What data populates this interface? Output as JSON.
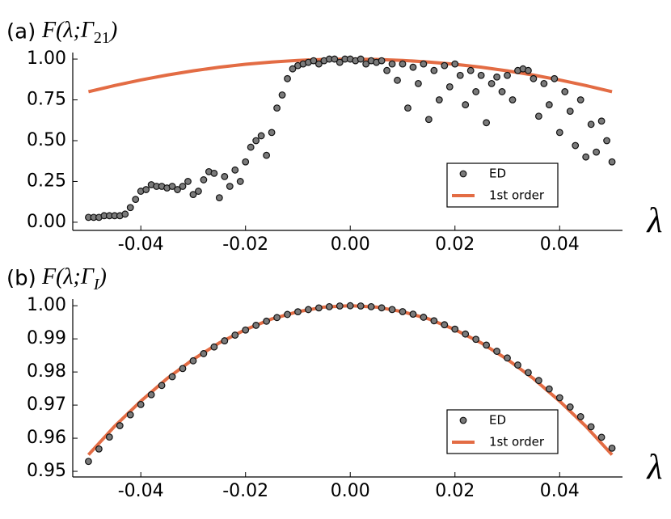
{
  "chart_data": [
    {
      "type": "scatter",
      "panel": "(a)",
      "title": [
        "F(λ;Γ",
        "21",
        ")"
      ],
      "x_label": "λ",
      "xlim": [
        -0.053,
        0.052
      ],
      "ylim": [
        -0.05,
        1.04
      ],
      "xticks": [
        {
          "value": -0.04,
          "label": "-0.04"
        },
        {
          "value": -0.02,
          "label": "-0.02"
        },
        {
          "value": 0,
          "label": "0.00"
        },
        {
          "value": 0.02,
          "label": "0.02"
        },
        {
          "value": 0.04,
          "label": "0.04"
        }
      ],
      "yticks": [
        {
          "value": 0,
          "label": "0.00"
        },
        {
          "value": 0.25,
          "label": "0.25"
        },
        {
          "value": 0.5,
          "label": "0.50"
        },
        {
          "value": 0.75,
          "label": "0.75"
        },
        {
          "value": 1,
          "label": "1.00"
        }
      ],
      "legend": "lower right",
      "series": [
        {
          "name": "ED",
          "type": "scatter",
          "color": "#7a7a7a",
          "x": [
            -0.05,
            -0.049,
            -0.048,
            -0.047,
            -0.046,
            -0.045,
            -0.044,
            -0.043,
            -0.042,
            -0.041,
            -0.04,
            -0.039,
            -0.038,
            -0.037,
            -0.036,
            -0.035,
            -0.034,
            -0.033,
            -0.032,
            -0.031,
            -0.03,
            -0.029,
            -0.028,
            -0.027,
            -0.026,
            -0.025,
            -0.024,
            -0.023,
            -0.022,
            -0.021,
            -0.02,
            -0.019,
            -0.018,
            -0.017,
            -0.016,
            -0.015,
            -0.014,
            -0.013,
            -0.012,
            -0.011,
            -0.01,
            -0.009,
            -0.008,
            -0.007,
            -0.006,
            -0.005,
            -0.004,
            -0.003,
            -0.002,
            -0.001,
            0,
            0.001,
            0.002,
            0.003,
            0.004,
            0.005,
            0.006,
            0.007,
            0.008,
            0.009,
            0.01,
            0.011,
            0.012,
            0.013,
            0.014,
            0.015,
            0.016,
            0.017,
            0.018,
            0.019,
            0.02,
            0.021,
            0.022,
            0.023,
            0.024,
            0.025,
            0.026,
            0.027,
            0.028,
            0.029,
            0.03,
            0.031,
            0.032,
            0.033,
            0.034,
            0.035,
            0.036,
            0.037,
            0.038,
            0.039,
            0.04,
            0.041,
            0.042,
            0.043,
            0.044,
            0.045,
            0.046,
            0.047,
            0.048,
            0.049,
            0.05
          ],
          "values": [
            0.03,
            0.03,
            0.03,
            0.04,
            0.04,
            0.04,
            0.04,
            0.05,
            0.09,
            0.14,
            0.19,
            0.2,
            0.23,
            0.22,
            0.22,
            0.21,
            0.22,
            0.2,
            0.22,
            0.25,
            0.17,
            0.19,
            0.26,
            0.31,
            0.3,
            0.15,
            0.28,
            0.22,
            0.32,
            0.25,
            0.37,
            0.46,
            0.5,
            0.53,
            0.41,
            0.55,
            0.7,
            0.78,
            0.88,
            0.94,
            0.96,
            0.97,
            0.98,
            0.99,
            0.97,
            0.99,
            1.0,
            1.0,
            0.98,
            1.0,
            1.0,
            0.99,
            1.0,
            0.97,
            0.99,
            0.98,
            0.99,
            0.93,
            0.97,
            0.87,
            0.97,
            0.7,
            0.95,
            0.85,
            0.97,
            0.63,
            0.93,
            0.75,
            0.96,
            0.83,
            0.97,
            0.9,
            0.72,
            0.93,
            0.8,
            0.9,
            0.61,
            0.85,
            0.89,
            0.8,
            0.9,
            0.75,
            0.93,
            0.94,
            0.93,
            0.88,
            0.65,
            0.85,
            0.72,
            0.88,
            0.55,
            0.8,
            0.68,
            0.47,
            0.75,
            0.4,
            0.6,
            0.43,
            0.62,
            0.5,
            0.37
          ]
        },
        {
          "name": "1st order",
          "type": "line",
          "color": "#e36c44",
          "x": [
            -0.05,
            -0.045,
            -0.04,
            -0.035,
            -0.03,
            -0.025,
            -0.02,
            -0.015,
            -0.01,
            -0.005,
            0,
            0.005,
            0.01,
            0.015,
            0.02,
            0.025,
            0.03,
            0.035,
            0.04,
            0.045,
            0.05
          ],
          "values": [
            0.8,
            0.838,
            0.872,
            0.902,
            0.928,
            0.95,
            0.968,
            0.982,
            0.992,
            0.998,
            1,
            0.998,
            0.992,
            0.982,
            0.968,
            0.95,
            0.928,
            0.902,
            0.872,
            0.838,
            0.8
          ]
        }
      ]
    },
    {
      "type": "scatter",
      "panel": "(b)",
      "title": [
        "F(λ;Γ",
        "I",
        ")"
      ],
      "x_label": "λ",
      "xlim": [
        -0.053,
        0.052
      ],
      "ylim": [
        0.9483,
        1.002
      ],
      "xticks": [
        {
          "value": -0.04,
          "label": "-0.04"
        },
        {
          "value": -0.02,
          "label": "-0.02"
        },
        {
          "value": 0,
          "label": "0.00"
        },
        {
          "value": 0.02,
          "label": "0.02"
        },
        {
          "value": 0.04,
          "label": "0.04"
        }
      ],
      "yticks": [
        {
          "value": 0.95,
          "label": "0.95"
        },
        {
          "value": 0.96,
          "label": "0.96"
        },
        {
          "value": 0.97,
          "label": "0.97"
        },
        {
          "value": 0.98,
          "label": "0.98"
        },
        {
          "value": 0.99,
          "label": "0.99"
        },
        {
          "value": 1,
          "label": "1.00"
        }
      ],
      "legend": "lower right",
      "series": [
        {
          "name": "ED",
          "type": "scatter",
          "color": "#7a7a7a",
          "x": [
            -0.05,
            -0.048,
            -0.046,
            -0.044,
            -0.042,
            -0.04,
            -0.038,
            -0.036,
            -0.034,
            -0.032,
            -0.03,
            -0.028,
            -0.026,
            -0.024,
            -0.022,
            -0.02,
            -0.018,
            -0.016,
            -0.014,
            -0.012,
            -0.01,
            -0.008,
            -0.006,
            -0.004,
            -0.002,
            0,
            0.002,
            0.004,
            0.006,
            0.008,
            0.01,
            0.012,
            0.014,
            0.016,
            0.018,
            0.02,
            0.022,
            0.024,
            0.026,
            0.028,
            0.03,
            0.032,
            0.034,
            0.036,
            0.038,
            0.04,
            0.042,
            0.044,
            0.046,
            0.048,
            0.05
          ],
          "values": [
            0.953,
            0.95676,
            0.96035,
            0.96379,
            0.96706,
            0.97018,
            0.97313,
            0.97593,
            0.97856,
            0.98104,
            0.98337,
            0.98554,
            0.98755,
            0.98941,
            0.99112,
            0.99267,
            0.99408,
            0.99533,
            0.99643,
            0.99738,
            0.99818,
            0.99884,
            0.99935,
            0.99971,
            0.99993,
            1,
            0.99993,
            0.99971,
            0.99936,
            0.99886,
            0.99822,
            0.99746,
            0.99652,
            0.99546,
            0.99426,
            0.99293,
            0.99146,
            0.98985,
            0.98811,
            0.98624,
            0.98423,
            0.98209,
            0.97982,
            0.97742,
            0.97488,
            0.97222,
            0.96943,
            0.96652,
            0.96347,
            0.96029,
            0.957
          ]
        },
        {
          "name": "1st order",
          "type": "line",
          "color": "#e36c44",
          "x": [
            -0.05,
            -0.045,
            -0.04,
            -0.035,
            -0.03,
            -0.025,
            -0.02,
            -0.015,
            -0.01,
            -0.005,
            0,
            0.005,
            0.01,
            0.015,
            0.02,
            0.025,
            0.03,
            0.035,
            0.04,
            0.045,
            0.05
          ],
          "values": [
            0.955,
            0.9636,
            0.9712,
            0.978,
            0.9838,
            0.9888,
            0.9928,
            0.996,
            0.9982,
            0.9996,
            1,
            0.9996,
            0.9982,
            0.996,
            0.9928,
            0.9888,
            0.9838,
            0.978,
            0.9712,
            0.9636,
            0.955
          ]
        }
      ]
    }
  ]
}
